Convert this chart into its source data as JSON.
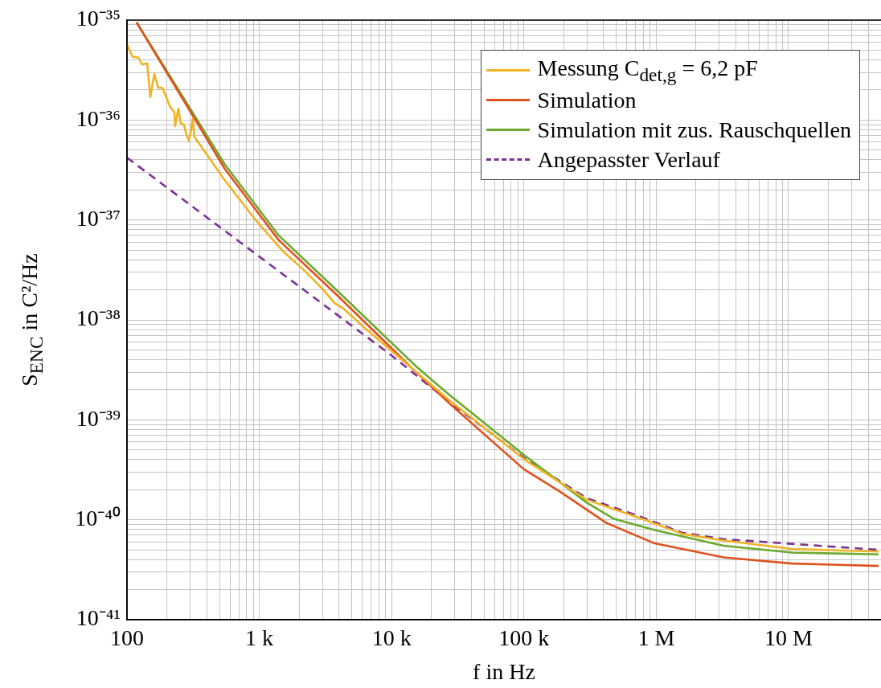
{
  "chart_data": {
    "type": "line",
    "xlabel": "f in Hz",
    "ylabel": "S$_{ENC}$ in C²/Hz",
    "log": "xy",
    "grid": true,
    "legend": "top right",
    "marker": "none",
    "xlim": [
      100,
      50000000
    ],
    "ylim": [
      1e-41,
      1e-35
    ],
    "xticks": [
      {
        "value": 100,
        "label": "100"
      },
      {
        "value": 200,
        "label": null
      },
      {
        "value": 300,
        "label": null
      },
      {
        "value": 400,
        "label": null
      },
      {
        "value": 500,
        "label": null
      },
      {
        "value": 600,
        "label": null
      },
      {
        "value": 700,
        "label": null
      },
      {
        "value": 800,
        "label": null
      },
      {
        "value": 900,
        "label": null
      },
      {
        "value": 1000,
        "label": "1 k"
      },
      {
        "value": 2000,
        "label": null
      },
      {
        "value": 3000,
        "label": null
      },
      {
        "value": 4000,
        "label": null
      },
      {
        "value": 5000,
        "label": null
      },
      {
        "value": 6000,
        "label": null
      },
      {
        "value": 7000,
        "label": null
      },
      {
        "value": 8000,
        "label": null
      },
      {
        "value": 9000,
        "label": null
      },
      {
        "value": 10000,
        "label": "10 k"
      },
      {
        "value": 20000,
        "label": null
      },
      {
        "value": 30000,
        "label": null
      },
      {
        "value": 40000,
        "label": null
      },
      {
        "value": 50000,
        "label": null
      },
      {
        "value": 60000,
        "label": null
      },
      {
        "value": 70000,
        "label": null
      },
      {
        "value": 80000,
        "label": null
      },
      {
        "value": 90000,
        "label": null
      },
      {
        "value": 100000,
        "label": "100 k"
      },
      {
        "value": 200000,
        "label": null
      },
      {
        "value": 300000,
        "label": null
      },
      {
        "value": 400000,
        "label": null
      },
      {
        "value": 500000,
        "label": null
      },
      {
        "value": 600000,
        "label": null
      },
      {
        "value": 700000,
        "label": null
      },
      {
        "value": 800000,
        "label": null
      },
      {
        "value": 900000,
        "label": null
      },
      {
        "value": 1000000,
        "label": "1 M"
      },
      {
        "value": 2000000,
        "label": null
      },
      {
        "value": 3000000,
        "label": null
      },
      {
        "value": 4000000,
        "label": null
      },
      {
        "value": 5000000,
        "label": null
      },
      {
        "value": 6000000,
        "label": null
      },
      {
        "value": 7000000,
        "label": null
      },
      {
        "value": 8000000,
        "label": null
      },
      {
        "value": 9000000,
        "label": null
      },
      {
        "value": 10000000,
        "label": "10 M"
      },
      {
        "value": 20000000,
        "label": null
      },
      {
        "value": 30000000,
        "label": null
      },
      {
        "value": 40000000,
        "label": null
      }
    ],
    "yticks": [
      {
        "value": 1e-41,
        "label": "10⁻⁴¹"
      },
      {
        "value": 2e-41,
        "label": null
      },
      {
        "value": 3e-41,
        "label": null
      },
      {
        "value": 4e-41,
        "label": null
      },
      {
        "value": 5e-41,
        "label": null
      },
      {
        "value": 6e-41,
        "label": null
      },
      {
        "value": 7e-41,
        "label": null
      },
      {
        "value": 8e-41,
        "label": null
      },
      {
        "value": 9e-41,
        "label": null
      },
      {
        "value": 1e-40,
        "label": "10⁻⁴⁰"
      },
      {
        "value": 2e-40,
        "label": null
      },
      {
        "value": 3e-40,
        "label": null
      },
      {
        "value": 4e-40,
        "label": null
      },
      {
        "value": 5e-40,
        "label": null
      },
      {
        "value": 6e-40,
        "label": null
      },
      {
        "value": 7e-40,
        "label": null
      },
      {
        "value": 8e-40,
        "label": null
      },
      {
        "value": 9e-40,
        "label": null
      },
      {
        "value": 1e-39,
        "label": "10⁻³⁹"
      },
      {
        "value": 2e-39,
        "label": null
      },
      {
        "value": 3e-39,
        "label": null
      },
      {
        "value": 4e-39,
        "label": null
      },
      {
        "value": 5e-39,
        "label": null
      },
      {
        "value": 6e-39,
        "label": null
      },
      {
        "value": 7e-39,
        "label": null
      },
      {
        "value": 8e-39,
        "label": null
      },
      {
        "value": 9e-39,
        "label": null
      },
      {
        "value": 1e-38,
        "label": "10⁻³⁸"
      },
      {
        "value": 2e-38,
        "label": null
      },
      {
        "value": 3e-38,
        "label": null
      },
      {
        "value": 4e-38,
        "label": null
      },
      {
        "value": 5e-38,
        "label": null
      },
      {
        "value": 6e-38,
        "label": null
      },
      {
        "value": 7e-38,
        "label": null
      },
      {
        "value": 8e-38,
        "label": null
      },
      {
        "value": 9e-38,
        "label": null
      },
      {
        "value": 1e-37,
        "label": "10⁻³⁷"
      },
      {
        "value": 2e-37,
        "label": null
      },
      {
        "value": 3e-37,
        "label": null
      },
      {
        "value": 4e-37,
        "label": null
      },
      {
        "value": 5e-37,
        "label": null
      },
      {
        "value": 6e-37,
        "label": null
      },
      {
        "value": 7e-37,
        "label": null
      },
      {
        "value": 8e-37,
        "label": null
      },
      {
        "value": 9e-37,
        "label": null
      },
      {
        "value": 1e-36,
        "label": "10⁻³⁶"
      },
      {
        "value": 2e-36,
        "label": null
      },
      {
        "value": 3e-36,
        "label": null
      },
      {
        "value": 4e-36,
        "label": null
      },
      {
        "value": 5e-36,
        "label": null
      },
      {
        "value": 6e-36,
        "label": null
      },
      {
        "value": 7e-36,
        "label": null
      },
      {
        "value": 8e-36,
        "label": null
      },
      {
        "value": 9e-36,
        "label": null
      },
      {
        "value": 1e-35,
        "label": "10⁻³⁵"
      }
    ],
    "series": [
      {
        "name": "Messung C$_{det,g}$ = 6,2 pF",
        "color": "#f0b323",
        "line_style": "solid",
        "x": [
          100,
          110,
          122,
          130,
          142,
          150,
          161,
          172,
          185,
          198,
          212,
          228,
          231,
          244,
          255,
          269,
          281,
          293,
          305,
          314,
          323,
          548,
          920,
          1500,
          2200,
          3050,
          3700,
          4270,
          6140,
          14200,
          27300,
          104000,
          297000,
          767000,
          1580000,
          3230000,
          10600000,
          47800000
        ],
        "values": [
          5.7e-36,
          4.3e-36,
          4.2e-36,
          3.6e-36,
          3.7e-36,
          1.7e-36,
          2.9e-36,
          2.1e-36,
          2.1e-36,
          1.7e-36,
          1.35e-36,
          1.2e-36,
          8.7e-37,
          1.3e-36,
          9.3e-37,
          9e-37,
          7.2e-37,
          6.2e-37,
          7.8e-37,
          1.04e-36,
          6.8e-37,
          2.5e-37,
          1.03e-37,
          4.9e-38,
          3.1e-38,
          2e-38,
          1.47e-38,
          1.32e-38,
          8.5e-39,
          3.3e-39,
          1.57e-39,
          3.9e-40,
          1.59e-40,
          1.03e-40,
          7.2e-41,
          6.2e-41,
          5.1e-41,
          4.8e-41
        ]
      },
      {
        "name": "Simulation",
        "color": "#e0521d",
        "line_style": "solid",
        "x": [
          118,
          548,
          1400,
          3900,
          14200,
          27300,
          100000,
          185000,
          420000,
          973000,
          3230000,
          10600000,
          47800000
        ],
        "values": [
          9.5e-36,
          3.25e-37,
          6.3e-38,
          1.75e-38,
          3.3e-39,
          1.46e-39,
          3.2e-40,
          1.93e-40,
          9.3e-41,
          5.8e-41,
          4.2e-41,
          3.65e-41,
          3.45e-41
        ]
      },
      {
        "name": "Simulation mit zus. Rauschquellen",
        "color": "#6aab2e",
        "line_style": "solid",
        "x": [
          118,
          548,
          1400,
          3900,
          15600,
          27300,
          100000,
          297000,
          480000,
          973000,
          3230000,
          10600000,
          47800000
        ],
        "values": [
          9.5e-36,
          3.6e-37,
          7e-38,
          1.95e-38,
          3.35e-39,
          1.78e-39,
          4.45e-40,
          1.49e-40,
          1.02e-40,
          7.9e-41,
          5.5e-41,
          4.7e-41,
          4.5e-41
        ]
      },
      {
        "name": "Angepasster Verlauf",
        "color": "#7b3294",
        "line_style": "dashed",
        "x": [
          100,
          10000,
          27300,
          104000,
          297000,
          767000,
          1580000,
          3230000,
          47800000
        ],
        "values": [
          4.2e-37,
          4.4e-39,
          1.51e-39,
          4e-40,
          1.65e-40,
          1.07e-40,
          7.4e-41,
          6.4e-41,
          5e-41
        ]
      }
    ]
  }
}
